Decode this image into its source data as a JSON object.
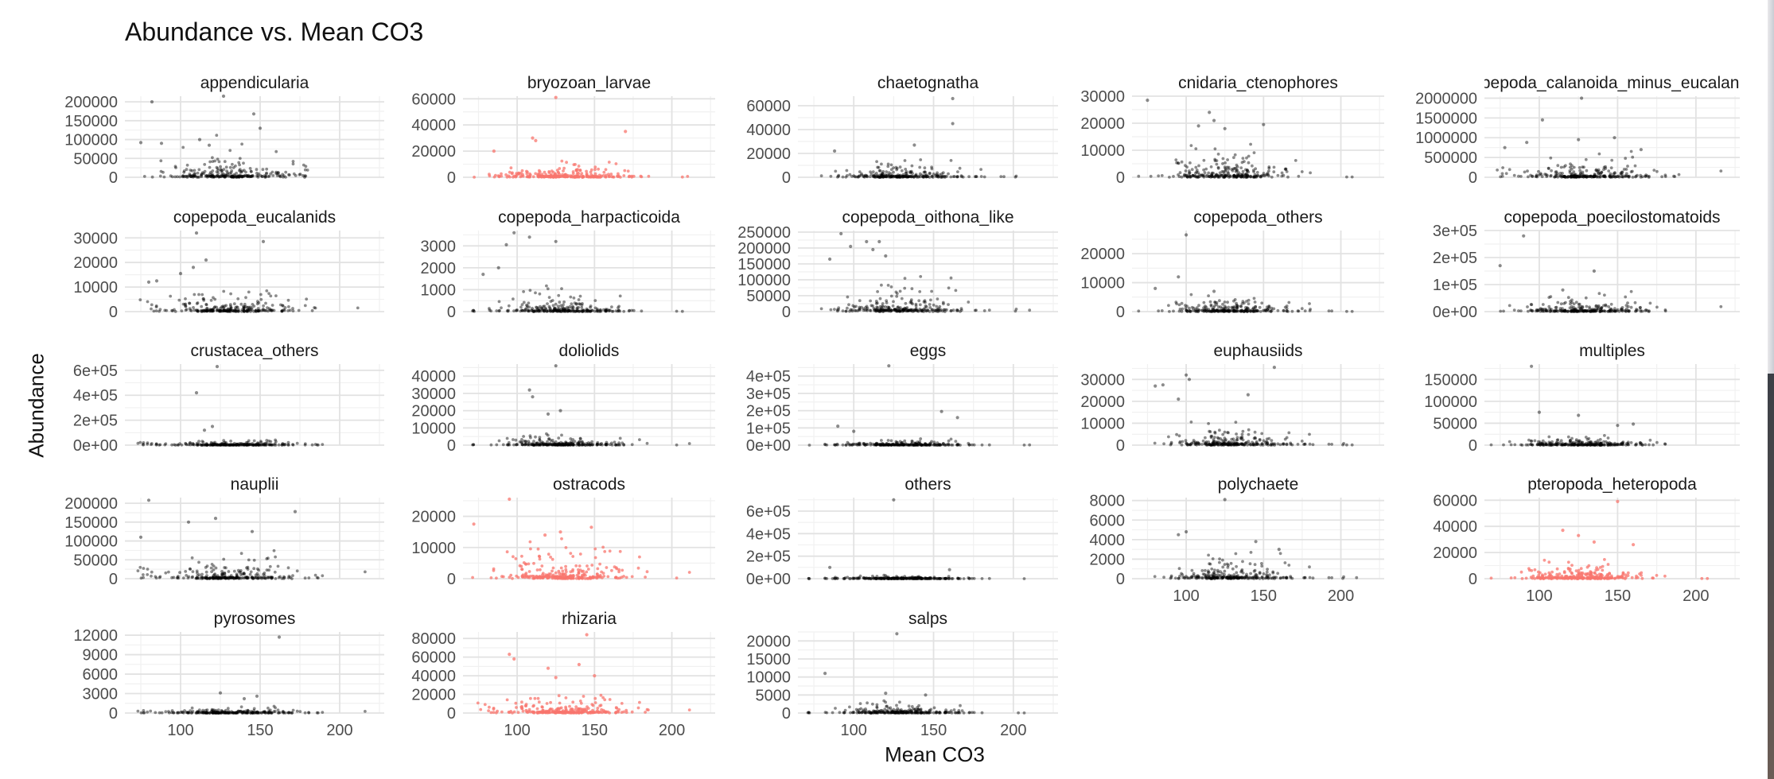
{
  "chart_data": {
    "type": "scatter",
    "title": "Abundance vs. Mean CO3",
    "xlabel": "Mean CO3",
    "ylabel": "Abundance",
    "facet_layout": "5 columns, 5 rows",
    "grid": true,
    "xlim": [
      65,
      228
    ],
    "x_ticks": [
      100,
      150,
      200
    ],
    "colors": {
      "default": "#000000",
      "highlight": "#f8766d"
    },
    "panels": [
      {
        "name": "appendicularia",
        "highlight": false,
        "ylim": [
          0,
          215000
        ],
        "ticks": [
          0,
          50000,
          100000,
          150000,
          200000
        ],
        "labels": [
          "0",
          "50000",
          "100000",
          "150000",
          "200000"
        ],
        "scale": 30000,
        "outliers": [
          [
            82,
            200000
          ],
          [
            127,
            215000
          ],
          [
            146,
            168000
          ],
          [
            150,
            130000
          ],
          [
            75,
            92000
          ],
          [
            88,
            90000
          ],
          [
            112,
            100000
          ],
          [
            118,
            85000
          ]
        ]
      },
      {
        "name": "bryozoan_larvae",
        "highlight": true,
        "ylim": [
          0,
          62000
        ],
        "ticks": [
          0,
          20000,
          40000,
          60000
        ],
        "labels": [
          "0",
          "20000",
          "40000",
          "60000"
        ],
        "scale": 7000,
        "outliers": [
          [
            125,
            61000
          ],
          [
            170,
            35000
          ],
          [
            110,
            30000
          ],
          [
            112,
            28000
          ],
          [
            85,
            20000
          ]
        ]
      },
      {
        "name": "chaetognatha",
        "highlight": false,
        "ylim": [
          0,
          68000
        ],
        "ticks": [
          0,
          20000,
          40000,
          60000
        ],
        "labels": [
          "0",
          "20000",
          "40000",
          "60000"
        ],
        "scale": 6000,
        "outliers": [
          [
            162,
            66000
          ],
          [
            162,
            45000
          ],
          [
            138,
            27000
          ],
          [
            88,
            22000
          ]
        ]
      },
      {
        "name": "cnidaria_ctenophores",
        "highlight": false,
        "ylim": [
          0,
          30000
        ],
        "ticks": [
          0,
          10000,
          20000,
          30000
        ],
        "labels": [
          "0",
          "10000",
          "20000",
          "30000"
        ],
        "scale": 5000,
        "outliers": [
          [
            75,
            28500
          ],
          [
            115,
            24000
          ],
          [
            118,
            21000
          ],
          [
            150,
            19500
          ],
          [
            125,
            18000
          ],
          [
            108,
            19000
          ]
        ]
      },
      {
        "name": "copepoda_calanoida_minus_eucalanids",
        "highlight": false,
        "ylim": [
          0,
          2050000
        ],
        "ticks": [
          0,
          500000,
          1000000,
          1500000,
          2000000
        ],
        "labels": [
          "0",
          "500000",
          "1000000",
          "1500000",
          "2000000"
        ],
        "scale": 220000,
        "outliers": [
          [
            127,
            2000000
          ],
          [
            102,
            1450000
          ],
          [
            148,
            1000000
          ],
          [
            125,
            950000
          ],
          [
            78,
            750000
          ],
          [
            92,
            880000
          ],
          [
            165,
            700000
          ]
        ]
      },
      {
        "name": "copepoda_eucalanids",
        "highlight": false,
        "ylim": [
          0,
          33000
        ],
        "ticks": [
          0,
          10000,
          20000,
          30000
        ],
        "labels": [
          "0",
          "10000",
          "20000",
          "30000"
        ],
        "scale": 4000,
        "outliers": [
          [
            110,
            32000
          ],
          [
            152,
            28500
          ],
          [
            116,
            21000
          ],
          [
            108,
            18000
          ],
          [
            100,
            15500
          ],
          [
            85,
            12500
          ],
          [
            80,
            12000
          ]
        ]
      },
      {
        "name": "copepoda_harpacticoida",
        "highlight": false,
        "ylim": [
          0,
          3700
        ],
        "ticks": [
          0,
          1000,
          2000,
          3000
        ],
        "labels": [
          "0",
          "1000",
          "2000",
          "3000"
        ],
        "scale": 450,
        "outliers": [
          [
            98,
            3600
          ],
          [
            108,
            3400
          ],
          [
            93,
            3050
          ],
          [
            125,
            3200
          ],
          [
            88,
            2000
          ],
          [
            78,
            1700
          ]
        ]
      },
      {
        "name": "copepoda_oithona_like",
        "highlight": false,
        "ylim": [
          0,
          255000
        ],
        "ticks": [
          0,
          50000,
          100000,
          150000,
          200000,
          250000
        ],
        "labels": [
          "0",
          "50000",
          "100000",
          "150000",
          "200000",
          "250000"
        ],
        "scale": 45000,
        "outliers": [
          [
            92,
            245000
          ],
          [
            108,
            220000
          ],
          [
            116,
            220000
          ],
          [
            98,
            205000
          ],
          [
            85,
            165000
          ],
          [
            112,
            195000
          ],
          [
            120,
            175000
          ]
        ]
      },
      {
        "name": "copepoda_others",
        "highlight": false,
        "ylim": [
          0,
          28000
        ],
        "ticks": [
          0,
          10000,
          20000
        ],
        "labels": [
          "0",
          "10000",
          "20000"
        ],
        "scale": 2500,
        "outliers": [
          [
            100,
            26500
          ],
          [
            95,
            12000
          ],
          [
            80,
            8000
          ],
          [
            118,
            7000
          ]
        ]
      },
      {
        "name": "copepoda_poecilostomatoids",
        "highlight": false,
        "ylim": [
          0,
          300000
        ],
        "ticks": [
          0,
          100000,
          200000,
          300000
        ],
        "labels": [
          "0e+00",
          "1e+05",
          "2e+05",
          "3e+05"
        ],
        "scale": 25000,
        "outliers": [
          [
            90,
            280000
          ],
          [
            75,
            170000
          ],
          [
            135,
            150000
          ],
          [
            115,
            80000
          ]
        ]
      },
      {
        "name": "crustacea_others",
        "highlight": false,
        "ylim": [
          0,
          650000
        ],
        "ticks": [
          0,
          200000,
          400000,
          600000
        ],
        "labels": [
          "0e+00",
          "2e+05",
          "4e+05",
          "6e+05"
        ],
        "scale": 18000,
        "outliers": [
          [
            123,
            630000
          ],
          [
            110,
            420000
          ],
          [
            120,
            150000
          ],
          [
            115,
            120000
          ]
        ]
      },
      {
        "name": "doliolids",
        "highlight": false,
        "ylim": [
          0,
          47000
        ],
        "ticks": [
          0,
          10000,
          20000,
          30000,
          40000
        ],
        "labels": [
          "0",
          "10000",
          "20000",
          "30000",
          "40000"
        ],
        "scale": 2500,
        "outliers": [
          [
            125,
            46000
          ],
          [
            108,
            32000
          ],
          [
            110,
            28000
          ],
          [
            128,
            20000
          ],
          [
            120,
            18000
          ]
        ]
      },
      {
        "name": "eggs",
        "highlight": false,
        "ylim": [
          0,
          470000
        ],
        "ticks": [
          0,
          100000,
          200000,
          300000,
          400000
        ],
        "labels": [
          "0e+00",
          "1e+05",
          "2e+05",
          "3e+05",
          "4e+05"
        ],
        "scale": 15000,
        "outliers": [
          [
            122,
            460000
          ],
          [
            155,
            195000
          ],
          [
            165,
            160000
          ],
          [
            90,
            110000
          ],
          [
            100,
            80000
          ]
        ]
      },
      {
        "name": "euphausiids",
        "highlight": false,
        "ylim": [
          0,
          37000
        ],
        "ticks": [
          0,
          10000,
          20000,
          30000
        ],
        "labels": [
          "0",
          "10000",
          "20000",
          "30000"
        ],
        "scale": 4500,
        "outliers": [
          [
            157,
            35500
          ],
          [
            100,
            32000
          ],
          [
            102,
            30000
          ],
          [
            80,
            27000
          ],
          [
            85,
            27500
          ],
          [
            140,
            23000
          ],
          [
            95,
            21000
          ]
        ]
      },
      {
        "name": "multiples",
        "highlight": false,
        "ylim": [
          0,
          185000
        ],
        "ticks": [
          0,
          50000,
          100000,
          150000
        ],
        "labels": [
          "0",
          "50000",
          "100000",
          "150000"
        ],
        "scale": 9000,
        "outliers": [
          [
            95,
            180000
          ],
          [
            100,
            75000
          ],
          [
            125,
            68000
          ],
          [
            150,
            45000
          ],
          [
            160,
            48000
          ]
        ]
      },
      {
        "name": "nauplii",
        "highlight": false,
        "ylim": [
          0,
          215000
        ],
        "ticks": [
          0,
          50000,
          100000,
          150000,
          200000
        ],
        "labels": [
          "0",
          "50000",
          "100000",
          "150000",
          "200000"
        ],
        "scale": 25000,
        "outliers": [
          [
            80,
            208000
          ],
          [
            172,
            178000
          ],
          [
            122,
            160000
          ],
          [
            105,
            150000
          ],
          [
            145,
            125000
          ],
          [
            75,
            110000
          ]
        ]
      },
      {
        "name": "ostracods",
        "highlight": true,
        "ylim": [
          0,
          26000
        ],
        "ticks": [
          0,
          10000,
          20000
        ],
        "labels": [
          "0",
          "10000",
          "20000"
        ],
        "scale": 5500,
        "outliers": [
          [
            95,
            25500
          ],
          [
            72,
            17500
          ],
          [
            148,
            16500
          ],
          [
            128,
            15000
          ],
          [
            118,
            14000
          ]
        ]
      },
      {
        "name": "others",
        "highlight": false,
        "ylim": [
          0,
          720000
        ],
        "ticks": [
          0,
          200000,
          400000,
          600000
        ],
        "labels": [
          "0e+00",
          "2e+05",
          "4e+05",
          "6e+05"
        ],
        "scale": 12000,
        "outliers": [
          [
            125,
            700000
          ],
          [
            85,
            100000
          ],
          [
            160,
            80000
          ]
        ]
      },
      {
        "name": "polychaete",
        "highlight": false,
        "ylim": [
          0,
          8300
        ],
        "ticks": [
          0,
          2000,
          4000,
          6000,
          8000
        ],
        "labels": [
          "0",
          "2000",
          "4000",
          "6000",
          "8000"
        ],
        "scale": 1100,
        "outliers": [
          [
            125,
            8100
          ],
          [
            100,
            4800
          ],
          [
            95,
            4500
          ],
          [
            145,
            3800
          ],
          [
            160,
            3000
          ]
        ]
      },
      {
        "name": "pteropoda_heteropoda",
        "highlight": true,
        "ylim": [
          0,
          62000
        ],
        "ticks": [
          0,
          20000,
          40000,
          60000
        ],
        "labels": [
          "0",
          "20000",
          "40000",
          "60000"
        ],
        "scale": 6000,
        "outliers": [
          [
            150,
            59000
          ],
          [
            115,
            37000
          ],
          [
            125,
            33000
          ],
          [
            160,
            26000
          ],
          [
            135,
            28000
          ]
        ]
      },
      {
        "name": "pyrosomes",
        "highlight": false,
        "ylim": [
          0,
          12500
        ],
        "ticks": [
          0,
          3000,
          6000,
          9000,
          12000
        ],
        "labels": [
          "0",
          "3000",
          "6000",
          "9000",
          "12000"
        ],
        "scale": 350,
        "outliers": [
          [
            162,
            11700
          ],
          [
            125,
            3100
          ],
          [
            148,
            2600
          ],
          [
            140,
            2200
          ]
        ]
      },
      {
        "name": "rhizaria",
        "highlight": true,
        "ylim": [
          0,
          87000
        ],
        "ticks": [
          0,
          20000,
          40000,
          60000,
          80000
        ],
        "labels": [
          "0",
          "20000",
          "40000",
          "60000",
          "80000"
        ],
        "scale": 9000,
        "outliers": [
          [
            145,
            84000
          ],
          [
            95,
            63000
          ],
          [
            98,
            58000
          ],
          [
            140,
            52000
          ],
          [
            120,
            48000
          ],
          [
            150,
            40000
          ],
          [
            125,
            38000
          ]
        ]
      },
      {
        "name": "salps",
        "highlight": false,
        "ylim": [
          0,
          22500
        ],
        "ticks": [
          0,
          5000,
          10000,
          15000,
          20000
        ],
        "labels": [
          "0",
          "5000",
          "10000",
          "15000",
          "20000"
        ],
        "scale": 1300,
        "outliers": [
          [
            127,
            22000
          ],
          [
            82,
            11000
          ],
          [
            145,
            5000
          ],
          [
            120,
            5500
          ]
        ]
      }
    ]
  }
}
